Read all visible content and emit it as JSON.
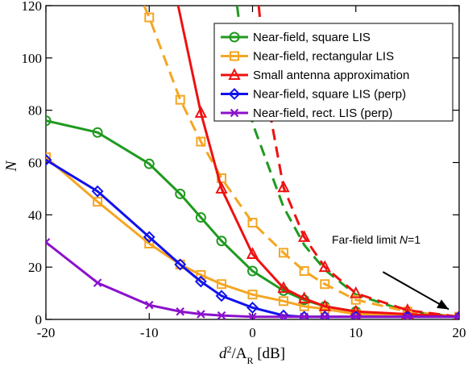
{
  "chart_data": {
    "type": "line",
    "xlabel": {
      "base": "d",
      "sup": "2",
      "mid": "/A",
      "sub": "R",
      "tail": " [dB]"
    },
    "ylabel": "N",
    "xlim": [
      -20,
      20
    ],
    "ylim": [
      0,
      120
    ],
    "xticks": [
      -20,
      -10,
      0,
      10,
      20
    ],
    "yticks": [
      0,
      20,
      40,
      60,
      80,
      100,
      120
    ],
    "grid": false,
    "legend_position": "top-right",
    "colors": {
      "green": "#1f9a1f",
      "orange": "#f5a623",
      "red": "#ee1111",
      "blue": "#1111ee",
      "purple": "#8b11cc"
    },
    "series": [
      {
        "name": "Near-field, square LIS",
        "color": "#1f9a1f",
        "marker": "circle",
        "markers_on": "solid",
        "solid_x": [
          -20,
          -15,
          -10,
          -7,
          -5,
          -3,
          0,
          3,
          5,
          7,
          10,
          15,
          20
        ],
        "solid_y": [
          76,
          71.5,
          59.5,
          48,
          39,
          30,
          18.5,
          11,
          7.5,
          5,
          3,
          1.5,
          1
        ],
        "dashed_x": [
          -1.5,
          0,
          3,
          5,
          7,
          10,
          15,
          20
        ],
        "dashed_y": [
          120,
          75,
          43,
          28.5,
          19,
          9.5,
          3,
          1
        ]
      },
      {
        "name": "Near-field, rectangular LIS",
        "color": "#f5a623",
        "marker": "square",
        "markers_on": "both",
        "solid_x": [
          -20,
          -15,
          -10,
          -7,
          -5,
          -3,
          0,
          3,
          5,
          7,
          10,
          15,
          20
        ],
        "solid_y": [
          62,
          45,
          29,
          21,
          17,
          13.5,
          9.5,
          7,
          5,
          4,
          2,
          1.5,
          1
        ],
        "dashed_x": [
          -10.5,
          -10,
          -7,
          -5,
          -3,
          0,
          3,
          5,
          7,
          10,
          15,
          20
        ],
        "dashed_y": [
          120,
          115.5,
          84,
          68,
          54,
          37,
          25.5,
          18.5,
          13.5,
          7.5,
          3,
          1
        ]
      },
      {
        "name": "Small antenna approximation",
        "color": "#ee1111",
        "marker": "triangle",
        "markers_on": "both",
        "solid_x": [
          -7.2,
          -5,
          -3,
          0,
          3,
          5,
          7,
          10,
          15,
          20
        ],
        "solid_y": [
          120,
          79,
          50,
          25,
          12,
          8,
          5,
          3,
          2,
          1
        ],
        "dashed_x": [
          0.6,
          1.5,
          3,
          5,
          7,
          10,
          15,
          20
        ],
        "dashed_y": [
          120,
          83,
          50.5,
          31.5,
          20,
          10,
          3.5,
          1
        ]
      },
      {
        "name": "Near-field, square LIS (perp)",
        "color": "#1111ee",
        "marker": "diamond",
        "markers_on": "solid",
        "solid_x": [
          -20,
          -15,
          -10,
          -7,
          -5,
          -3,
          0,
          3,
          5,
          7,
          10,
          15,
          20
        ],
        "solid_y": [
          61,
          49,
          31.5,
          21,
          14.5,
          9,
          4.5,
          1.5,
          1,
          1,
          1,
          1,
          1
        ]
      },
      {
        "name": "Near-field, rect. LIS (perp)",
        "color": "#8b11cc",
        "marker": "x",
        "markers_on": "solid",
        "solid_x": [
          -20,
          -15,
          -10,
          -7,
          -5,
          -3,
          0,
          3,
          5,
          7,
          10,
          15,
          20
        ],
        "solid_y": [
          29.5,
          14,
          5.5,
          3,
          2,
          1.5,
          1,
          1,
          1,
          1,
          1,
          1,
          1
        ]
      }
    ],
    "annotation": {
      "prefix": "Far-field limit ",
      "var": "N",
      "suffix": "=1",
      "arrow_from": [
        12,
        20
      ],
      "arrow_to": [
        19,
        2
      ]
    }
  }
}
